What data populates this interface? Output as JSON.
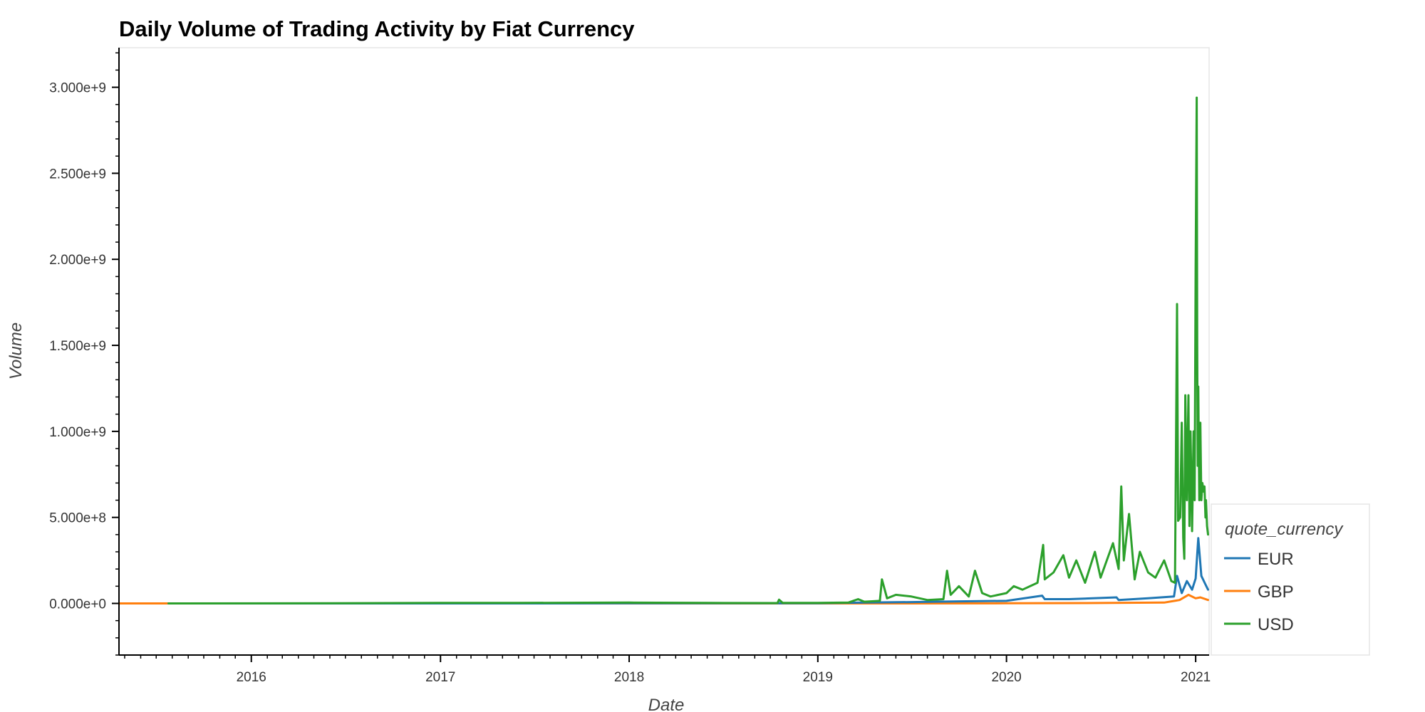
{
  "chart_data": {
    "type": "line",
    "title": "Daily Volume of Trading Activity by Fiat Currency",
    "xlabel": "Date",
    "ylabel": "Volume",
    "xlim": [
      "2015-04-20",
      "2021-01-27"
    ],
    "ylim": [
      -300000000,
      3230000000
    ],
    "x_ticks": [
      "2016-01-01",
      "2017-01-01",
      "2018-01-01",
      "2019-01-01",
      "2020-01-01",
      "2021-01-01"
    ],
    "x_tick_labels": [
      "2016",
      "2017",
      "2018",
      "2019",
      "2020",
      "2021"
    ],
    "y_ticks": [
      0,
      500000000,
      1000000000,
      1500000000,
      2000000000,
      2500000000,
      3000000000
    ],
    "y_tick_labels": [
      "0.000e+0",
      "5.000e+8",
      "1.000e+9",
      "1.500e+9",
      "2.000e+9",
      "2.500e+9",
      "3.000e+9"
    ],
    "grid": false,
    "legend": {
      "title": "quote_currency",
      "placement": "right-bottom"
    },
    "series": [
      {
        "name": "EUR",
        "color": "#1f77b4",
        "x": [
          "2015-07-25",
          "2016-06-01",
          "2017-06-01",
          "2018-01-01",
          "2018-06-01",
          "2019-01-01",
          "2019-04-01",
          "2019-07-01",
          "2019-10-01",
          "2020-01-01",
          "2020-03-10",
          "2020-03-15",
          "2020-05-01",
          "2020-08-01",
          "2020-08-05",
          "2020-10-01",
          "2020-11-20",
          "2020-11-26",
          "2020-12-05",
          "2020-12-15",
          "2020-12-25",
          "2021-01-01",
          "2021-01-06",
          "2021-01-12",
          "2021-01-20",
          "2021-01-25"
        ],
        "y": [
          0,
          0,
          0,
          1000000,
          1000000,
          1000000,
          5000000,
          8000000,
          12000000,
          15000000,
          45000000,
          25000000,
          25000000,
          35000000,
          20000000,
          30000000,
          40000000,
          160000000,
          60000000,
          130000000,
          80000000,
          145000000,
          380000000,
          160000000,
          110000000,
          80000000
        ]
      },
      {
        "name": "GBP",
        "color": "#ff7f0e",
        "x": [
          "2015-04-20",
          "2015-07-25",
          "2016-06-01",
          "2017-06-01",
          "2018-06-01",
          "2019-01-01",
          "2019-06-01",
          "2020-01-01",
          "2020-06-01",
          "2020-11-01",
          "2020-12-01",
          "2020-12-18",
          "2021-01-01",
          "2021-01-10",
          "2021-01-25"
        ],
        "y": [
          0,
          0,
          0,
          0,
          0,
          0,
          0,
          1000000,
          2000000,
          5000000,
          20000000,
          50000000,
          30000000,
          35000000,
          20000000
        ]
      },
      {
        "name": "USD",
        "color": "#2ca02c",
        "x": [
          "2015-07-25",
          "2016-06-01",
          "2017-01-01",
          "2017-06-01",
          "2018-01-01",
          "2018-06-01",
          "2018-10-15",
          "2018-10-18",
          "2018-10-25",
          "2019-01-01",
          "2019-03-01",
          "2019-03-20",
          "2019-04-01",
          "2019-05-01",
          "2019-05-05",
          "2019-05-15",
          "2019-06-01",
          "2019-07-01",
          "2019-08-01",
          "2019-09-01",
          "2019-09-08",
          "2019-09-15",
          "2019-10-01",
          "2019-10-20",
          "2019-11-01",
          "2019-11-15",
          "2019-12-01",
          "2020-01-01",
          "2020-01-15",
          "2020-02-01",
          "2020-03-01",
          "2020-03-12",
          "2020-03-15",
          "2020-04-01",
          "2020-04-20",
          "2020-05-01",
          "2020-05-15",
          "2020-06-01",
          "2020-06-20",
          "2020-07-01",
          "2020-07-25",
          "2020-08-05",
          "2020-08-10",
          "2020-08-15",
          "2020-08-25",
          "2020-09-05",
          "2020-09-15",
          "2020-10-01",
          "2020-10-15",
          "2020-11-01",
          "2020-11-15",
          "2020-11-22",
          "2020-11-26",
          "2020-11-28",
          "2020-12-02",
          "2020-12-05",
          "2020-12-08",
          "2020-12-10",
          "2020-12-12",
          "2020-12-15",
          "2020-12-18",
          "2020-12-20",
          "2020-12-22",
          "2020-12-25",
          "2020-12-28",
          "2020-12-30",
          "2021-01-01",
          "2021-01-03",
          "2021-01-04",
          "2021-01-05",
          "2021-01-06",
          "2021-01-08",
          "2021-01-10",
          "2021-01-11",
          "2021-01-12",
          "2021-01-14",
          "2021-01-16",
          "2021-01-18",
          "2021-01-20",
          "2021-01-21",
          "2021-01-23",
          "2021-01-25"
        ],
        "y": [
          0,
          1000000,
          3000000,
          3000000,
          5000000,
          3000000,
          2000000,
          22000000,
          3000000,
          3000000,
          5000000,
          25000000,
          10000000,
          15000000,
          140000000,
          30000000,
          50000000,
          40000000,
          20000000,
          25000000,
          190000000,
          50000000,
          100000000,
          40000000,
          190000000,
          60000000,
          40000000,
          60000000,
          100000000,
          80000000,
          120000000,
          340000000,
          140000000,
          180000000,
          280000000,
          150000000,
          250000000,
          120000000,
          300000000,
          150000000,
          350000000,
          200000000,
          680000000,
          250000000,
          520000000,
          140000000,
          300000000,
          180000000,
          150000000,
          250000000,
          130000000,
          120000000,
          1740000000,
          480000000,
          500000000,
          1050000000,
          380000000,
          260000000,
          1210000000,
          600000000,
          1210000000,
          450000000,
          1000000000,
          420000000,
          1000000000,
          600000000,
          1950000000,
          2940000000,
          1500000000,
          800000000,
          1260000000,
          600000000,
          1050000000,
          820000000,
          600000000,
          700000000,
          650000000,
          680000000,
          500000000,
          600000000,
          450000000,
          400000000
        ]
      }
    ]
  }
}
